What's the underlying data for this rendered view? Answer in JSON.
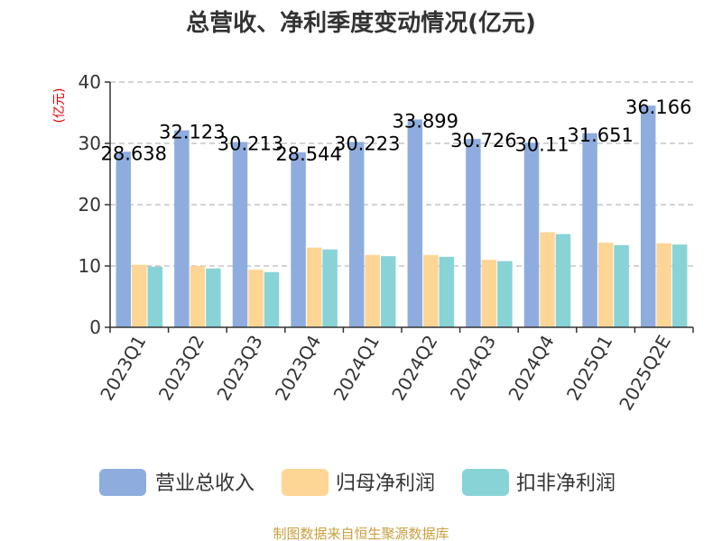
{
  "chart_data": {
    "type": "bar",
    "title": "总营收、净利季度变动情况(亿元)",
    "ylabel": "(亿元)",
    "ylim": [
      0,
      40
    ],
    "yticks": [
      0,
      10,
      20,
      30,
      40
    ],
    "grid": true,
    "legend_position": "bottom",
    "categories": [
      "2023Q1",
      "2023Q2",
      "2023Q3",
      "2023Q4",
      "2024Q1",
      "2024Q2",
      "2024Q3",
      "2024Q4",
      "2025Q1",
      "2025Q2E"
    ],
    "series": [
      {
        "name": "营业总收入",
        "color": "#8eadde",
        "values": [
          28.638,
          32.123,
          30.213,
          28.544,
          30.223,
          33.899,
          30.726,
          30.11,
          31.651,
          36.166
        ],
        "labels": [
          "28.638",
          "32.123",
          "30.213",
          "28.544",
          "30.223",
          "33.899",
          "30.726",
          "30.11",
          "31.651",
          "36.166"
        ]
      },
      {
        "name": "归母净利润",
        "color": "#fdd595",
        "values": [
          10.2,
          10.0,
          9.4,
          13.0,
          11.8,
          11.8,
          11.0,
          15.5,
          13.8,
          13.7
        ]
      },
      {
        "name": "扣非净利润",
        "color": "#88d3d6",
        "values": [
          9.9,
          9.6,
          9.0,
          12.7,
          11.6,
          11.5,
          10.8,
          15.2,
          13.4,
          13.5
        ]
      }
    ]
  },
  "source": "制图数据来自恒生聚源数据库"
}
